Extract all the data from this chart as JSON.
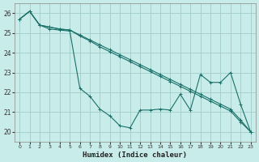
{
  "bg_color": "#c8ecea",
  "grid_color": "#a0ccc8",
  "line_color": "#1a7068",
  "xlabel": "Humidex (Indice chaleur)",
  "xlim": [
    -0.5,
    23.5
  ],
  "ylim": [
    19.5,
    26.5
  ],
  "xticks": [
    0,
    1,
    2,
    3,
    4,
    5,
    6,
    7,
    8,
    9,
    10,
    11,
    12,
    13,
    14,
    15,
    16,
    17,
    18,
    19,
    20,
    21,
    22,
    23
  ],
  "yticks": [
    20,
    21,
    22,
    23,
    24,
    25,
    26
  ],
  "line1_x": [
    0,
    1,
    2,
    3,
    4,
    5,
    6,
    7,
    8,
    9,
    10,
    11,
    12,
    13,
    14,
    15,
    16,
    17,
    18,
    19,
    20,
    21,
    22,
    23
  ],
  "line1_y": [
    25.7,
    26.1,
    25.4,
    25.2,
    25.15,
    25.1,
    22.2,
    21.8,
    21.15,
    20.8,
    20.3,
    20.2,
    21.1,
    21.1,
    21.15,
    21.1,
    21.9,
    21.1,
    22.9,
    22.5,
    22.5,
    23.0,
    21.4,
    20.0
  ],
  "line2_x": [
    0,
    1,
    2,
    3,
    4,
    5,
    6,
    7,
    8,
    9,
    10,
    11,
    12,
    13,
    14,
    15,
    16,
    17,
    18,
    19,
    20,
    21,
    22,
    23
  ],
  "line2_y": [
    25.7,
    26.1,
    25.4,
    25.3,
    25.2,
    25.15,
    24.9,
    24.65,
    24.4,
    24.15,
    23.9,
    23.65,
    23.4,
    23.15,
    22.9,
    22.65,
    22.4,
    22.15,
    21.9,
    21.65,
    21.4,
    21.15,
    20.6,
    20.0
  ],
  "line3_x": [
    0,
    1,
    2,
    3,
    4,
    5,
    6,
    7,
    8,
    9,
    10,
    11,
    12,
    13,
    14,
    15,
    16,
    17,
    18,
    19,
    20,
    21,
    22,
    23
  ],
  "line3_y": [
    25.7,
    26.1,
    25.4,
    25.3,
    25.2,
    25.15,
    24.85,
    24.6,
    24.3,
    24.05,
    23.8,
    23.55,
    23.3,
    23.05,
    22.8,
    22.55,
    22.3,
    22.05,
    21.8,
    21.55,
    21.3,
    21.05,
    20.5,
    20.0
  ]
}
